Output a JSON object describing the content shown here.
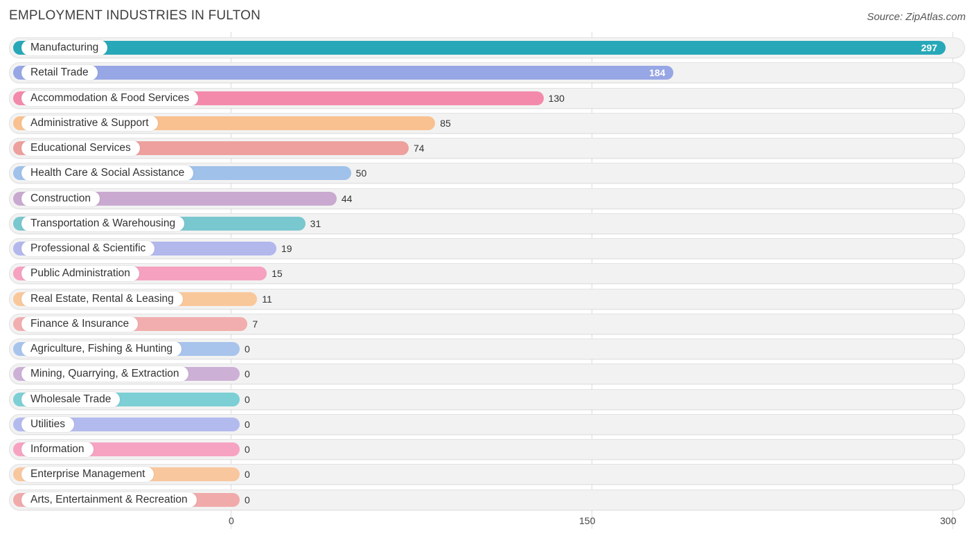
{
  "title": "EMPLOYMENT INDUSTRIES IN FULTON",
  "source": "Source: ZipAtlas.com",
  "chart_data": {
    "type": "bar",
    "orientation": "horizontal",
    "title": "EMPLOYMENT INDUSTRIES IN FULTON",
    "xlim": [
      0,
      300
    ],
    "ticks": [
      {
        "value": 0,
        "label": "0"
      },
      {
        "value": 150,
        "label": "150"
      },
      {
        "value": 300,
        "label": "300"
      }
    ],
    "categories": [
      "Manufacturing",
      "Retail Trade",
      "Accommodation & Food Services",
      "Administrative & Support",
      "Educational Services",
      "Health Care & Social Assistance",
      "Construction",
      "Transportation & Warehousing",
      "Professional & Scientific",
      "Public Administration",
      "Real Estate, Rental & Leasing",
      "Finance & Insurance",
      "Agriculture, Fishing & Hunting",
      "Mining, Quarrying, & Extraction",
      "Wholesale Trade",
      "Utilities",
      "Information",
      "Enterprise Management",
      "Arts, Entertainment & Recreation"
    ],
    "values": [
      297,
      184,
      130,
      85,
      74,
      50,
      44,
      31,
      19,
      15,
      11,
      7,
      0,
      0,
      0,
      0,
      0,
      0,
      0
    ],
    "colors": [
      "#27a8b8",
      "#97a6e4",
      "#f48aab",
      "#f9c18f",
      "#eda09d",
      "#9fc1ea",
      "#c9a9d0",
      "#79c7cf",
      "#b2b8ec",
      "#f5a1bf",
      "#f9c89a",
      "#f2aeae",
      "#a8c4ec",
      "#cdb0d6",
      "#7ccfd5",
      "#b3bbee",
      "#f6a3c2",
      "#f9c79e",
      "#f1aaaa"
    ]
  }
}
